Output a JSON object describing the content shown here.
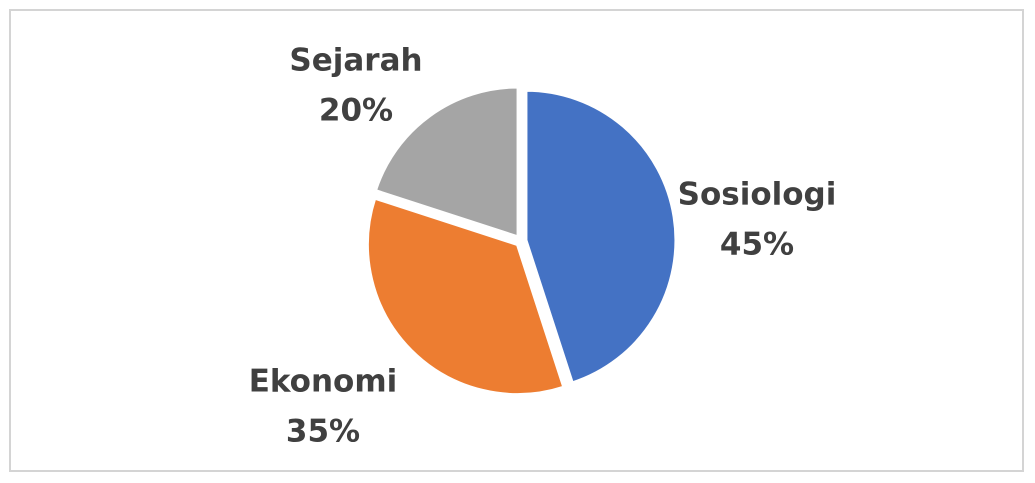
{
  "chart_data": {
    "type": "pie",
    "title": "",
    "slices": [
      {
        "label": "Sosiologi",
        "value": 45,
        "value_text": "45%",
        "color": "#4472C4"
      },
      {
        "label": "Ekonomi",
        "value": 35,
        "value_text": "35%",
        "color": "#ED7D31"
      },
      {
        "label": "Sejarah",
        "value": 20,
        "value_text": "20%",
        "color": "#A5A5A5"
      }
    ],
    "start": "12 o'clock",
    "direction": "clockwise",
    "legend": "none",
    "labels": "outside, category name above percentage"
  },
  "colors": {
    "label_text": "#404040",
    "slice_separator": "#FFFFFF",
    "frame_border": "#D4D4D4"
  }
}
